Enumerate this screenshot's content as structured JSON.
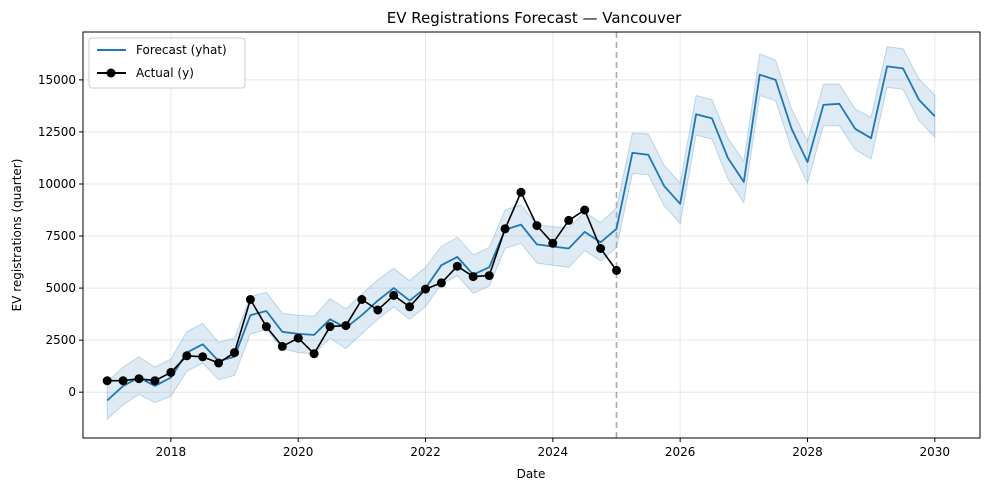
{
  "chart_data": {
    "type": "line",
    "title": "EV Registrations Forecast — Vancouver",
    "xlabel": "Date",
    "ylabel": "EV registrations (quarter)",
    "x_ticks": [
      "2018",
      "2020",
      "2022",
      "2024",
      "2026",
      "2028",
      "2030"
    ],
    "y_ticks": [
      "0",
      "2500",
      "5000",
      "7500",
      "10000",
      "12500",
      "15000"
    ],
    "xlim": [
      2016.62,
      2030.71
    ],
    "ylim": [
      -2200,
      17300
    ],
    "grid": true,
    "legend_position": "top-left",
    "forecast_start": "2025-01-01",
    "colors": {
      "forecast": "#1f77b4",
      "band": "#1f77b4",
      "actual": "#000000",
      "divider": "#aaaaaa"
    },
    "series": [
      {
        "name": "Forecast (yhat)",
        "x": [
          "2017-01-01",
          "2017-04-01",
          "2017-07-01",
          "2017-10-01",
          "2018-01-01",
          "2018-04-01",
          "2018-07-01",
          "2018-10-01",
          "2019-01-01",
          "2019-04-01",
          "2019-07-01",
          "2019-10-01",
          "2020-01-01",
          "2020-04-01",
          "2020-07-01",
          "2020-10-01",
          "2021-01-01",
          "2021-04-01",
          "2021-07-01",
          "2021-10-01",
          "2022-01-01",
          "2022-04-01",
          "2022-07-01",
          "2022-10-01",
          "2023-01-01",
          "2023-04-01",
          "2023-07-01",
          "2023-10-01",
          "2024-01-01",
          "2024-04-01",
          "2024-07-01",
          "2024-10-01",
          "2025-01-01",
          "2025-04-01",
          "2025-07-01",
          "2025-10-01",
          "2026-01-01",
          "2026-04-01",
          "2026-07-01",
          "2026-10-01",
          "2027-01-01",
          "2027-04-01",
          "2027-07-01",
          "2027-10-01",
          "2028-01-01",
          "2028-04-01",
          "2028-07-01",
          "2028-10-01",
          "2029-01-01",
          "2029-04-01",
          "2029-07-01",
          "2029-10-01",
          "2030-01-01"
        ],
        "values": [
          -400,
          300,
          700,
          300,
          700,
          1900,
          2300,
          1500,
          1700,
          3700,
          3900,
          2900,
          2800,
          2750,
          3500,
          3100,
          3700,
          4400,
          5000,
          4400,
          5000,
          6100,
          6500,
          5650,
          6000,
          7800,
          8050,
          7100,
          7000,
          6900,
          7700,
          7200,
          7850,
          11500,
          11400,
          9900,
          9050,
          13350,
          13150,
          11250,
          10100,
          15250,
          15000,
          12650,
          11050,
          13800,
          13850,
          12650,
          12200,
          15650,
          15550,
          14050,
          13250
        ],
        "lower": [
          -1300,
          -600,
          -100,
          -500,
          -200,
          1000,
          1400,
          600,
          800,
          2800,
          3000,
          2100,
          1900,
          1850,
          2600,
          2100,
          2800,
          3500,
          4100,
          3500,
          4100,
          5200,
          5600,
          4750,
          5100,
          6900,
          7150,
          6200,
          6100,
          6000,
          6800,
          6300,
          6950,
          10500,
          10450,
          8950,
          8100,
          12350,
          12150,
          10250,
          9100,
          14250,
          14000,
          11650,
          10050,
          12800,
          12800,
          11650,
          11200,
          14650,
          14550,
          13050,
          12250
        ],
        "upper": [
          500,
          1200,
          1700,
          1200,
          1600,
          2900,
          3300,
          2400,
          2600,
          4600,
          4800,
          3800,
          3700,
          3650,
          4500,
          4000,
          4700,
          5400,
          5950,
          5350,
          6000,
          7000,
          7450,
          6600,
          6950,
          8750,
          9000,
          8050,
          7950,
          7900,
          8650,
          8150,
          8850,
          12450,
          12400,
          10900,
          10050,
          14250,
          14050,
          12200,
          11100,
          16250,
          15950,
          13600,
          12050,
          14800,
          14800,
          13600,
          13200,
          16600,
          16500,
          15050,
          14250
        ]
      },
      {
        "name": "Actual (y)",
        "x": [
          "2017-01-01",
          "2017-04-01",
          "2017-07-01",
          "2017-10-01",
          "2018-01-01",
          "2018-04-01",
          "2018-07-01",
          "2018-10-01",
          "2019-01-01",
          "2019-04-01",
          "2019-07-01",
          "2019-10-01",
          "2020-01-01",
          "2020-04-01",
          "2020-07-01",
          "2020-10-01",
          "2021-01-01",
          "2021-04-01",
          "2021-07-01",
          "2021-10-01",
          "2022-01-01",
          "2022-04-01",
          "2022-07-01",
          "2022-10-01",
          "2023-01-01",
          "2023-04-01",
          "2023-07-01",
          "2023-10-01",
          "2024-01-01",
          "2024-04-01",
          "2024-07-01",
          "2024-10-01",
          "2025-01-01"
        ],
        "values": [
          550,
          550,
          650,
          550,
          950,
          1750,
          1700,
          1400,
          1900,
          4450,
          3150,
          2200,
          2600,
          1850,
          3150,
          3200,
          4450,
          3950,
          4650,
          4100,
          4950,
          5250,
          6050,
          5550,
          5600,
          7850,
          9600,
          8000,
          7150,
          8250,
          8750,
          6900,
          5850
        ]
      }
    ]
  }
}
